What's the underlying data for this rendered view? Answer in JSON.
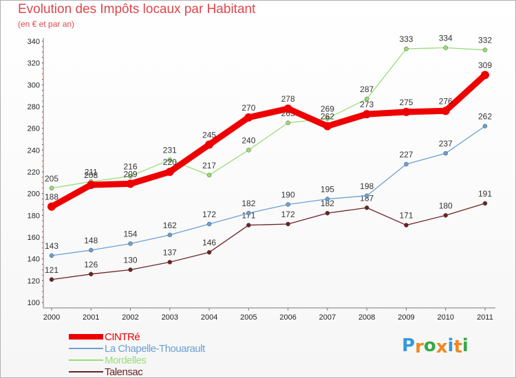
{
  "chart_data": {
    "type": "line",
    "title": "Evolution des Impôts locaux par Habitant",
    "subtitle": "(en € et par an)",
    "x": [
      "2000",
      "2001",
      "2002",
      "2003",
      "2004",
      "2005",
      "2006",
      "2007",
      "2008",
      "2009",
      "2010",
      "2011"
    ],
    "ylim": [
      100,
      340
    ],
    "yticks": [
      "100",
      "120",
      "140",
      "160",
      "180",
      "200",
      "220",
      "240",
      "260",
      "280",
      "300",
      "320",
      "340"
    ],
    "series": [
      {
        "name": "Talensac",
        "color": "#6b2222",
        "values": [
          121,
          126,
          130,
          137,
          146,
          171,
          172,
          182,
          187,
          171,
          180,
          191
        ],
        "labels": [
          "121",
          "126",
          "130",
          "137",
          "146",
          "171",
          "172",
          "182",
          "187",
          "171",
          "180",
          "191"
        ]
      },
      {
        "name": "La Chapelle-Thouarault",
        "color": "#6aa0d6",
        "values": [
          143,
          148,
          154,
          162,
          172,
          182,
          190,
          195,
          198,
          227,
          237,
          262
        ],
        "labels": [
          "143",
          "148",
          "154",
          "162",
          "172",
          "182",
          "190",
          "195",
          "198",
          "227",
          "237",
          "262"
        ]
      },
      {
        "name": "Mordelles",
        "color": "#99dd77",
        "values": [
          205,
          211,
          216,
          231,
          217,
          240,
          265,
          269,
          287,
          333,
          334,
          332
        ],
        "labels": [
          "205",
          "211",
          "216",
          "231",
          "217",
          "240",
          "265",
          "269",
          "287",
          "333",
          "334",
          "332"
        ]
      },
      {
        "name": "CINTRé",
        "color": "#ee0000",
        "values": [
          188,
          208,
          209,
          220,
          245,
          270,
          278,
          262,
          273,
          275,
          276,
          309
        ],
        "labels": [
          "188",
          "208",
          "209",
          "220",
          "245",
          "270",
          "278",
          "262",
          "273",
          "275",
          "276",
          "309"
        ]
      }
    ],
    "legend": [
      "CINTRé",
      "La Chapelle-Thouarault",
      "Mordelles",
      "Talensac"
    ],
    "grid": false
  },
  "legend_items": [
    {
      "label": "CINTRé",
      "color": "#ee0000"
    },
    {
      "label": "La Chapelle-Thouarault",
      "color": "#6aa0d6"
    },
    {
      "label": "Mordelles",
      "color": "#99dd77"
    },
    {
      "label": "Talensac",
      "color": "#6b2222"
    }
  ],
  "logo": {
    "text": "Proxiti",
    "letters": [
      "P",
      "r",
      "o",
      "x",
      "i",
      "t",
      "i"
    ],
    "colors": [
      "#3399dd",
      "#ee8822",
      "#33aa44",
      "#ee8822",
      "#3399dd",
      "#ee8822",
      "#33aa44"
    ]
  }
}
